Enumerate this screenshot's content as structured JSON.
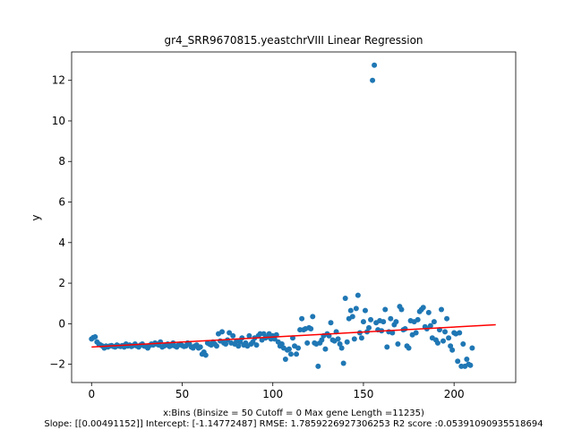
{
  "chart_data": {
    "type": "scatter",
    "title": "gr4_SRR9670815.yeastchrVIII Linear Regression",
    "xlabel": "x:Bins  (Binsize = 50 Cutoff = 0 Max gene Length =11235)",
    "ylabel": "y",
    "footer": "Slope: [[0.00491152]] Intercept: [-1.14772487] RMSE: 1.7859226927306253 R2 score :0.05391090935518694",
    "xlim": [
      -11,
      234
    ],
    "ylim": [
      -2.9,
      13.4
    ],
    "xticks": [
      0,
      50,
      100,
      150,
      200
    ],
    "yticks": [
      -2,
      0,
      2,
      4,
      6,
      8,
      10,
      12
    ],
    "grid": false,
    "colors": {
      "points": "#1f77b4",
      "line": "#ff0000",
      "axes": "#000000"
    },
    "regression": {
      "slope": 0.00491152,
      "intercept": -1.14772487,
      "x_range": [
        0,
        223
      ]
    },
    "series": [
      {
        "points": [
          [
            0,
            -0.75
          ],
          [
            1,
            -0.68
          ],
          [
            2,
            -0.65
          ],
          [
            3,
            -0.9
          ],
          [
            4,
            -1.0
          ],
          [
            5,
            -1.05
          ],
          [
            6,
            -1.1
          ],
          [
            7,
            -1.2
          ],
          [
            8,
            -1.1
          ],
          [
            9,
            -1.15
          ],
          [
            10,
            -1.1
          ],
          [
            11,
            -1.08
          ],
          [
            12,
            -1.12
          ],
          [
            13,
            -1.15
          ],
          [
            14,
            -1.05
          ],
          [
            15,
            -1.1
          ],
          [
            16,
            -1.12
          ],
          [
            17,
            -1.08
          ],
          [
            18,
            -1.15
          ],
          [
            19,
            -1.0
          ],
          [
            20,
            -1.1
          ],
          [
            21,
            -1.05
          ],
          [
            22,
            -1.12
          ],
          [
            23,
            -1.08
          ],
          [
            24,
            -1.0
          ],
          [
            25,
            -1.1
          ],
          [
            26,
            -1.15
          ],
          [
            27,
            -1.05
          ],
          [
            28,
            -1.0
          ],
          [
            29,
            -1.1
          ],
          [
            30,
            -1.12
          ],
          [
            31,
            -1.2
          ],
          [
            32,
            -1.08
          ],
          [
            33,
            -1.0
          ],
          [
            34,
            -1.05
          ],
          [
            35,
            -0.95
          ],
          [
            36,
            -1.0
          ],
          [
            37,
            -1.05
          ],
          [
            38,
            -0.9
          ],
          [
            39,
            -1.15
          ],
          [
            40,
            -1.1
          ],
          [
            41,
            -1.05
          ],
          [
            42,
            -1.0
          ],
          [
            43,
            -1.12
          ],
          [
            44,
            -1.08
          ],
          [
            45,
            -0.95
          ],
          [
            46,
            -1.1
          ],
          [
            47,
            -1.15
          ],
          [
            48,
            -1.05
          ],
          [
            49,
            -1.0
          ],
          [
            50,
            -1.08
          ],
          [
            51,
            -1.12
          ],
          [
            52,
            -1.1
          ],
          [
            53,
            -0.95
          ],
          [
            54,
            -1.0
          ],
          [
            55,
            -1.15
          ],
          [
            56,
            -1.2
          ],
          [
            57,
            -1.1
          ],
          [
            58,
            -1.05
          ],
          [
            59,
            -1.2
          ],
          [
            60,
            -1.15
          ],
          [
            61,
            -1.5
          ],
          [
            62,
            -1.4
          ],
          [
            63,
            -1.55
          ],
          [
            64,
            -0.95
          ],
          [
            65,
            -1.0
          ],
          [
            66,
            -1.05
          ],
          [
            67,
            -0.9
          ],
          [
            68,
            -1.0
          ],
          [
            69,
            -1.1
          ],
          [
            70,
            -0.5
          ],
          [
            71,
            -0.85
          ],
          [
            72,
            -0.4
          ],
          [
            73,
            -0.95
          ],
          [
            74,
            -1.0
          ],
          [
            75,
            -0.8
          ],
          [
            76,
            -0.45
          ],
          [
            77,
            -0.95
          ],
          [
            78,
            -0.6
          ],
          [
            79,
            -1.0
          ],
          [
            80,
            -0.85
          ],
          [
            81,
            -1.1
          ],
          [
            82,
            -0.9
          ],
          [
            83,
            -0.7
          ],
          [
            84,
            -1.05
          ],
          [
            85,
            -0.95
          ],
          [
            86,
            -1.1
          ],
          [
            87,
            -0.6
          ],
          [
            88,
            -1.0
          ],
          [
            89,
            -0.9
          ],
          [
            90,
            -0.7
          ],
          [
            91,
            -1.05
          ],
          [
            92,
            -0.6
          ],
          [
            93,
            -0.5
          ],
          [
            94,
            -0.8
          ],
          [
            95,
            -0.5
          ],
          [
            96,
            -0.7
          ],
          [
            97,
            -0.65
          ],
          [
            98,
            -0.5
          ],
          [
            99,
            -0.75
          ],
          [
            100,
            -0.6
          ],
          [
            101,
            -0.75
          ],
          [
            102,
            -0.55
          ],
          [
            103,
            -0.9
          ],
          [
            104,
            -1.1
          ],
          [
            105,
            -1.0
          ],
          [
            106,
            -1.2
          ],
          [
            107,
            -1.75
          ],
          [
            108,
            -1.3
          ],
          [
            109,
            -1.25
          ],
          [
            110,
            -1.5
          ],
          [
            111,
            -0.7
          ],
          [
            112,
            -1.1
          ],
          [
            113,
            -1.5
          ],
          [
            114,
            -1.2
          ],
          [
            115,
            -0.3
          ],
          [
            116,
            0.25
          ],
          [
            117,
            -0.3
          ],
          [
            118,
            -0.25
          ],
          [
            119,
            -0.95
          ],
          [
            120,
            -0.2
          ],
          [
            121,
            -0.25
          ],
          [
            122,
            0.35
          ],
          [
            123,
            -0.95
          ],
          [
            124,
            -1.0
          ],
          [
            125,
            -2.1
          ],
          [
            126,
            -0.95
          ],
          [
            127,
            -0.8
          ],
          [
            128,
            -0.6
          ],
          [
            129,
            -1.25
          ],
          [
            130,
            -0.5
          ],
          [
            131,
            -0.6
          ],
          [
            132,
            0.05
          ],
          [
            133,
            -0.8
          ],
          [
            134,
            -0.85
          ],
          [
            135,
            -0.4
          ],
          [
            136,
            -0.75
          ],
          [
            137,
            -1.0
          ],
          [
            138,
            -1.2
          ],
          [
            139,
            -1.95
          ],
          [
            140,
            1.25
          ],
          [
            141,
            -0.9
          ],
          [
            142,
            0.25
          ],
          [
            143,
            0.65
          ],
          [
            144,
            0.35
          ],
          [
            145,
            -0.75
          ],
          [
            146,
            0.75
          ],
          [
            147,
            1.4
          ],
          [
            148,
            -0.45
          ],
          [
            149,
            -0.7
          ],
          [
            150,
            0.1
          ],
          [
            151,
            0.65
          ],
          [
            152,
            -0.4
          ],
          [
            153,
            -0.2
          ],
          [
            154,
            0.2
          ],
          [
            155,
            12.0
          ],
          [
            156,
            12.75
          ],
          [
            157,
            0.05
          ],
          [
            158,
            -0.3
          ],
          [
            159,
            0.15
          ],
          [
            160,
            -0.35
          ],
          [
            161,
            0.1
          ],
          [
            162,
            0.7
          ],
          [
            163,
            -1.15
          ],
          [
            164,
            -0.4
          ],
          [
            165,
            0.25
          ],
          [
            166,
            -0.45
          ],
          [
            167,
            -0.05
          ],
          [
            168,
            0.1
          ],
          [
            169,
            -1.0
          ],
          [
            170,
            0.85
          ],
          [
            171,
            0.7
          ],
          [
            172,
            -0.3
          ],
          [
            173,
            -0.25
          ],
          [
            174,
            -1.1
          ],
          [
            175,
            -1.2
          ],
          [
            176,
            0.15
          ],
          [
            177,
            -0.55
          ],
          [
            178,
            0.1
          ],
          [
            179,
            -0.45
          ],
          [
            180,
            0.2
          ],
          [
            181,
            0.6
          ],
          [
            182,
            0.7
          ],
          [
            183,
            0.8
          ],
          [
            184,
            -0.15
          ],
          [
            185,
            -0.25
          ],
          [
            186,
            0.55
          ],
          [
            187,
            -0.1
          ],
          [
            188,
            -0.7
          ],
          [
            189,
            0.1
          ],
          [
            190,
            -0.8
          ],
          [
            191,
            -0.95
          ],
          [
            192,
            -0.3
          ],
          [
            193,
            0.7
          ],
          [
            194,
            -0.85
          ],
          [
            195,
            -0.4
          ],
          [
            196,
            0.25
          ],
          [
            197,
            -0.7
          ],
          [
            198,
            -1.1
          ],
          [
            199,
            -1.3
          ],
          [
            200,
            -0.45
          ],
          [
            201,
            -0.5
          ],
          [
            202,
            -1.85
          ],
          [
            203,
            -0.45
          ],
          [
            204,
            -2.1
          ],
          [
            205,
            -1.0
          ],
          [
            206,
            -2.1
          ],
          [
            207,
            -1.75
          ],
          [
            208,
            -2.0
          ],
          [
            209,
            -2.05
          ],
          [
            210,
            -1.2
          ]
        ]
      }
    ]
  }
}
